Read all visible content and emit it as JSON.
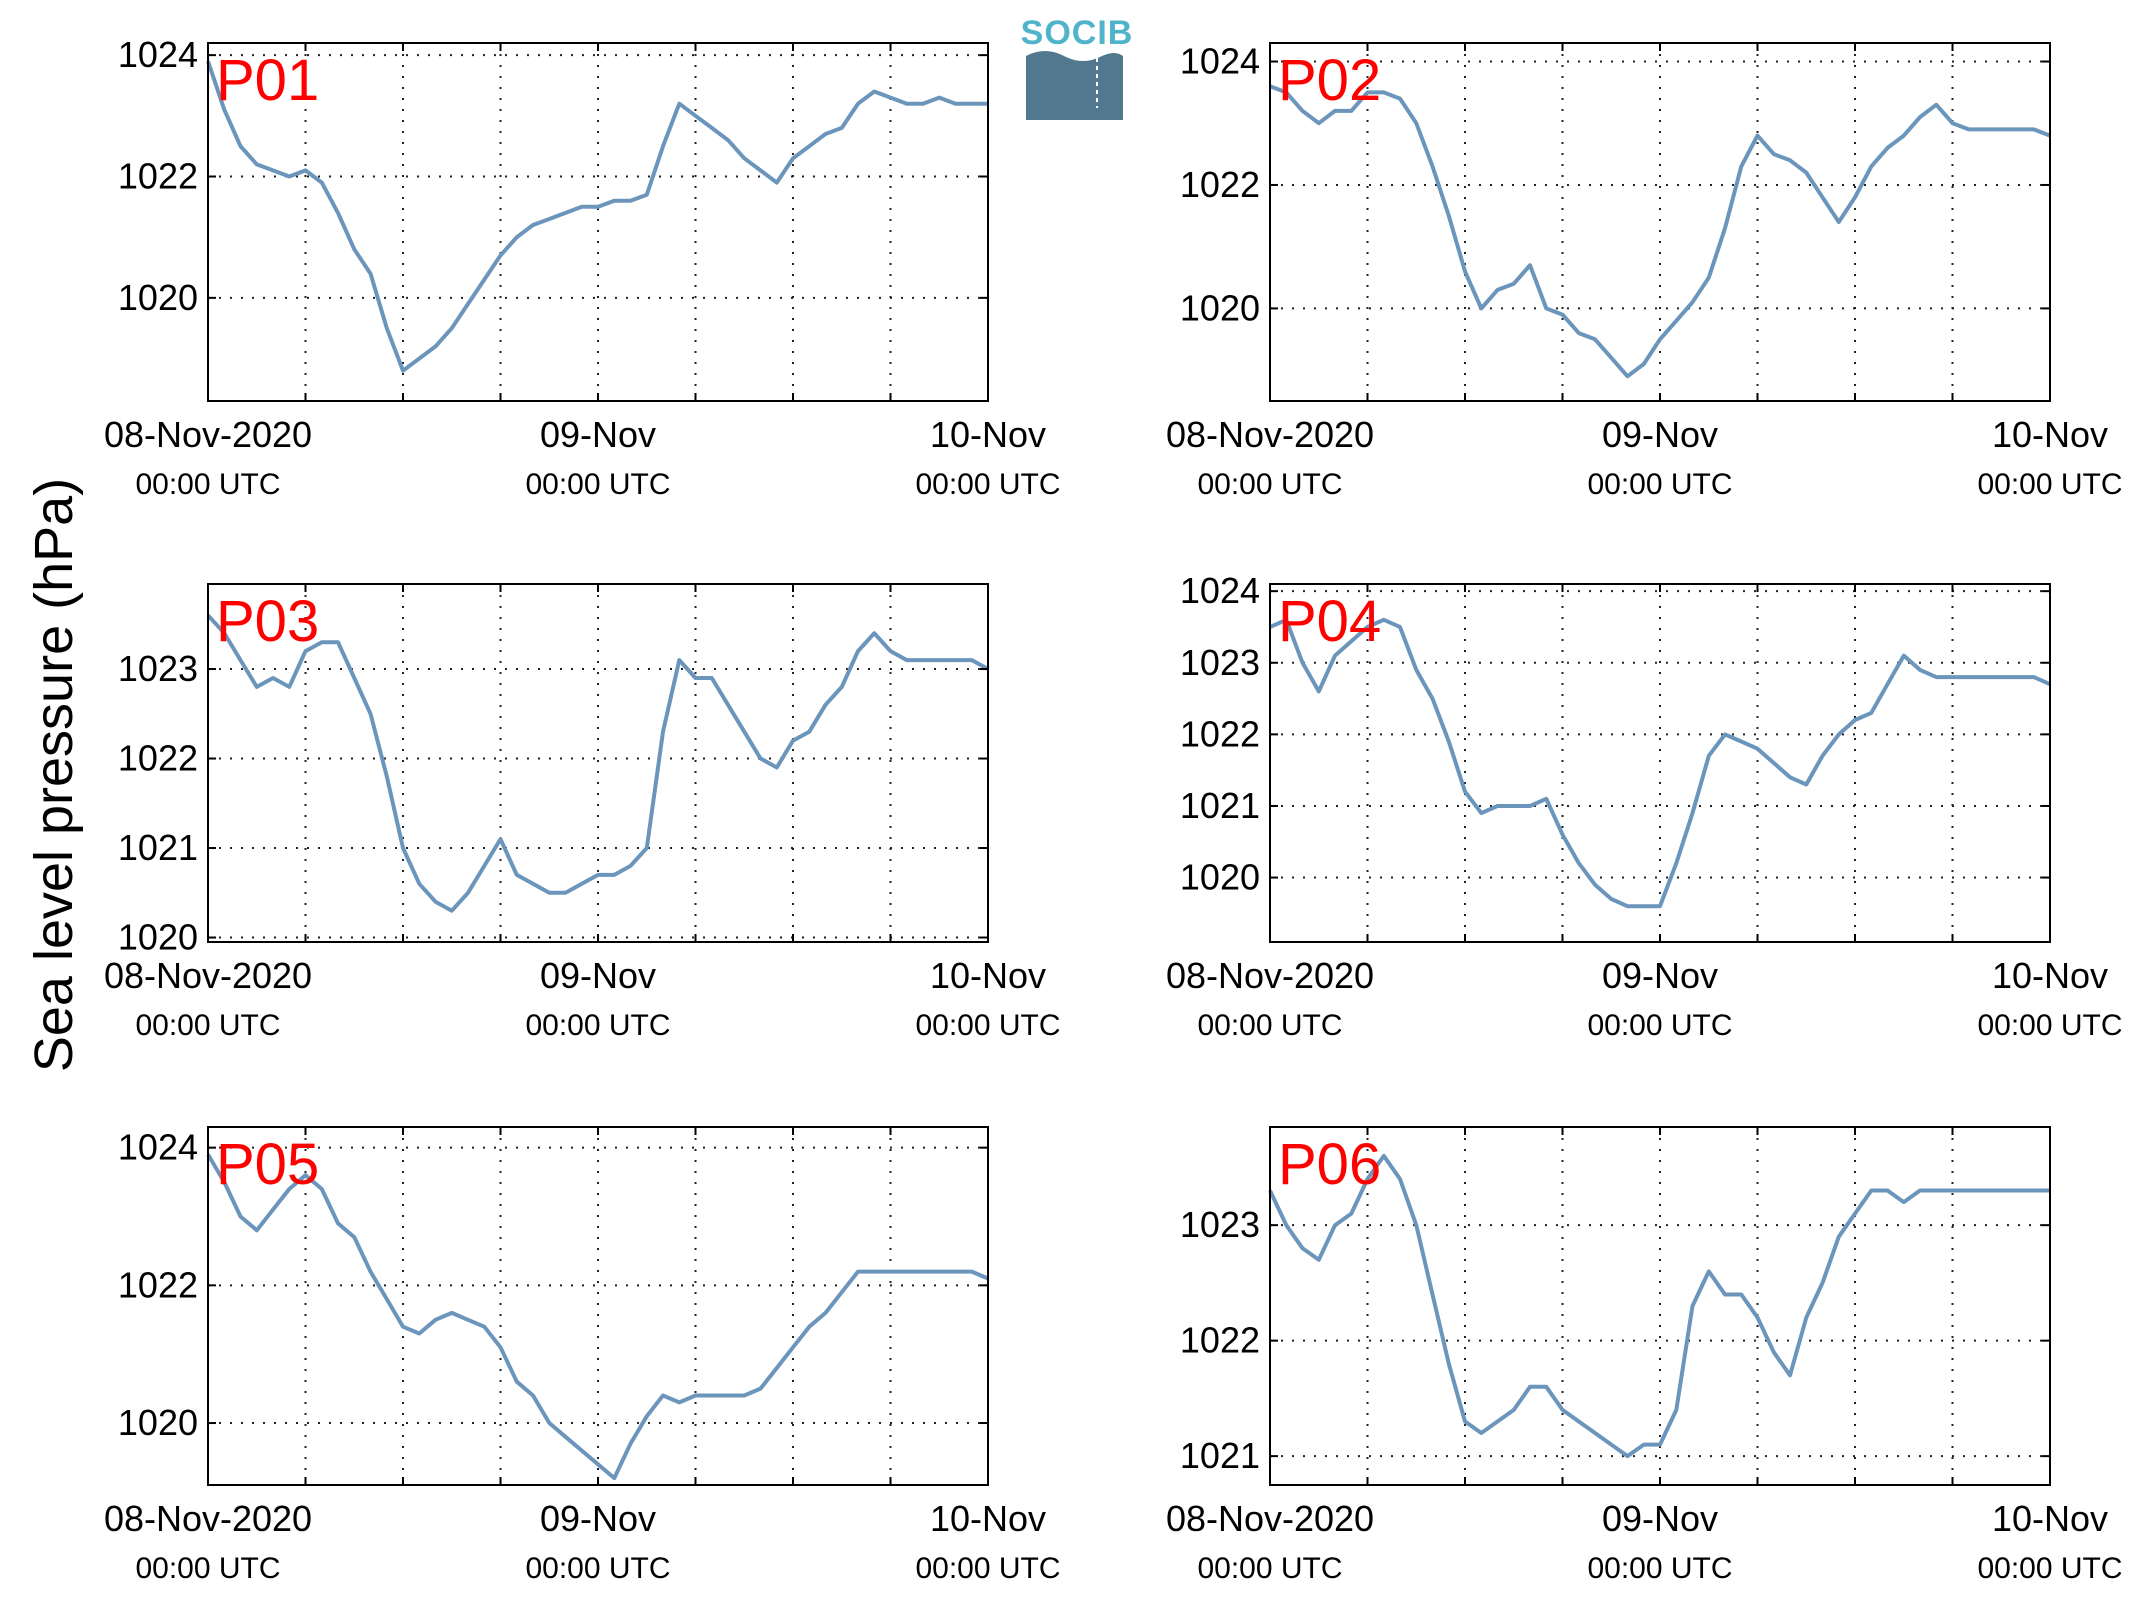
{
  "figure": {
    "ylabel": "Sea level pressure (hPa)",
    "logo": "SOCIB",
    "line_color": "#6b95bb",
    "label_color": "#ff0000"
  },
  "chart_data": [
    {
      "type": "line",
      "panel": "P01",
      "xlim": [
        0,
        48
      ],
      "ylim": [
        1018.3,
        1024.2
      ],
      "yticks": [
        1020,
        1022,
        1024
      ],
      "xtick_labels": [
        {
          "x": 0,
          "date": "08-Nov-2020",
          "time": "00:00 UTC"
        },
        {
          "x": 24,
          "date": "09-Nov",
          "time": "00:00 UTC"
        },
        {
          "x": 48,
          "date": "10-Nov",
          "time": "00:00 UTC"
        }
      ],
      "grid": true,
      "x": [
        0,
        1,
        2,
        3,
        4,
        5,
        6,
        7,
        8,
        9,
        10,
        11,
        12,
        13,
        14,
        15,
        16,
        17,
        18,
        19,
        20,
        21,
        22,
        23,
        24,
        25,
        26,
        27,
        28,
        29,
        30,
        31,
        32,
        33,
        34,
        35,
        36,
        37,
        38,
        39,
        40,
        41,
        42,
        43,
        44,
        45,
        46,
        47,
        48
      ],
      "y": [
        1023.9,
        1023.1,
        1022.5,
        1022.2,
        1022.1,
        1022.0,
        1022.1,
        1021.9,
        1021.4,
        1020.8,
        1020.4,
        1019.5,
        1018.8,
        1019.0,
        1019.2,
        1019.5,
        1019.9,
        1020.3,
        1020.7,
        1021.0,
        1021.2,
        1021.3,
        1021.4,
        1021.5,
        1021.5,
        1021.6,
        1021.6,
        1021.7,
        1022.5,
        1023.2,
        1023.0,
        1022.8,
        1022.6,
        1022.3,
        1022.1,
        1021.9,
        1022.3,
        1022.5,
        1022.7,
        1022.8,
        1023.2,
        1023.4,
        1023.3,
        1023.2,
        1023.2,
        1023.3,
        1023.2,
        1023.2,
        1023.2
      ]
    },
    {
      "type": "line",
      "panel": "P02",
      "xlim": [
        0,
        48
      ],
      "ylim": [
        1018.5,
        1024.3
      ],
      "yticks": [
        1020,
        1022,
        1024
      ],
      "xtick_labels": [
        {
          "x": 0,
          "date": "08-Nov-2020",
          "time": "00:00 UTC"
        },
        {
          "x": 24,
          "date": "09-Nov",
          "time": "00:00 UTC"
        },
        {
          "x": 48,
          "date": "10-Nov",
          "time": "00:00 UTC"
        }
      ],
      "grid": true,
      "x": [
        0,
        1,
        2,
        3,
        4,
        5,
        6,
        7,
        8,
        9,
        10,
        11,
        12,
        13,
        14,
        15,
        16,
        17,
        18,
        19,
        20,
        21,
        22,
        23,
        24,
        25,
        26,
        27,
        28,
        29,
        30,
        31,
        32,
        33,
        34,
        35,
        36,
        37,
        38,
        39,
        40,
        41,
        42,
        43,
        44,
        45,
        46,
        47,
        48
      ],
      "y": [
        1023.6,
        1023.5,
        1023.2,
        1023.0,
        1023.2,
        1023.2,
        1023.5,
        1023.5,
        1023.4,
        1023.0,
        1022.3,
        1021.5,
        1020.6,
        1020.0,
        1020.3,
        1020.4,
        1020.7,
        1020.0,
        1019.9,
        1019.6,
        1019.5,
        1019.2,
        1018.9,
        1019.1,
        1019.5,
        1019.8,
        1020.1,
        1020.5,
        1021.3,
        1022.3,
        1022.8,
        1022.5,
        1022.4,
        1022.2,
        1021.8,
        1021.4,
        1021.8,
        1022.3,
        1022.6,
        1022.8,
        1023.1,
        1023.3,
        1023.0,
        1022.9,
        1022.9,
        1022.9,
        1022.9,
        1022.9,
        1022.8
      ]
    },
    {
      "type": "line",
      "panel": "P03",
      "xlim": [
        0,
        48
      ],
      "ylim": [
        1019.95,
        1023.95
      ],
      "yticks": [
        1020,
        1021,
        1022,
        1023
      ],
      "xtick_labels": [
        {
          "x": 0,
          "date": "08-Nov-2020",
          "time": "00:00 UTC"
        },
        {
          "x": 24,
          "date": "09-Nov",
          "time": "00:00 UTC"
        },
        {
          "x": 48,
          "date": "10-Nov",
          "time": "00:00 UTC"
        }
      ],
      "grid": true,
      "x": [
        0,
        1,
        2,
        3,
        4,
        5,
        6,
        7,
        8,
        9,
        10,
        11,
        12,
        13,
        14,
        15,
        16,
        17,
        18,
        19,
        20,
        21,
        22,
        23,
        24,
        25,
        26,
        27,
        28,
        29,
        30,
        31,
        32,
        33,
        34,
        35,
        36,
        37,
        38,
        39,
        40,
        41,
        42,
        43,
        44,
        45,
        46,
        47,
        48
      ],
      "y": [
        1023.6,
        1023.4,
        1023.1,
        1022.8,
        1022.9,
        1022.8,
        1023.2,
        1023.3,
        1023.3,
        1022.9,
        1022.5,
        1021.8,
        1021.0,
        1020.6,
        1020.4,
        1020.3,
        1020.5,
        1020.8,
        1021.1,
        1020.7,
        1020.6,
        1020.5,
        1020.5,
        1020.6,
        1020.7,
        1020.7,
        1020.8,
        1021.0,
        1022.3,
        1023.1,
        1022.9,
        1022.9,
        1022.6,
        1022.3,
        1022.0,
        1021.9,
        1022.2,
        1022.3,
        1022.6,
        1022.8,
        1023.2,
        1023.4,
        1023.2,
        1023.1,
        1023.1,
        1023.1,
        1023.1,
        1023.1,
        1023.0
      ]
    },
    {
      "type": "line",
      "panel": "P04",
      "xlim": [
        0,
        48
      ],
      "ylim": [
        1019.1,
        1024.1
      ],
      "yticks": [
        1020,
        1021,
        1022,
        1023,
        1024
      ],
      "xtick_labels": [
        {
          "x": 0,
          "date": "08-Nov-2020",
          "time": "00:00 UTC"
        },
        {
          "x": 24,
          "date": "09-Nov",
          "time": "00:00 UTC"
        },
        {
          "x": 48,
          "date": "10-Nov",
          "time": "00:00 UTC"
        }
      ],
      "grid": true,
      "x": [
        0,
        1,
        2,
        3,
        4,
        5,
        6,
        7,
        8,
        9,
        10,
        11,
        12,
        13,
        14,
        15,
        16,
        17,
        18,
        19,
        20,
        21,
        22,
        23,
        24,
        25,
        26,
        27,
        28,
        29,
        30,
        31,
        32,
        33,
        34,
        35,
        36,
        37,
        38,
        39,
        40,
        41,
        42,
        43,
        44,
        45,
        46,
        47,
        48
      ],
      "y": [
        1023.5,
        1023.6,
        1023.0,
        1022.6,
        1023.1,
        1023.3,
        1023.5,
        1023.6,
        1023.5,
        1022.9,
        1022.5,
        1021.9,
        1021.2,
        1020.9,
        1021.0,
        1021.0,
        1021.0,
        1021.1,
        1020.6,
        1020.2,
        1019.9,
        1019.7,
        1019.6,
        1019.6,
        1019.6,
        1020.2,
        1020.9,
        1021.7,
        1022.0,
        1021.9,
        1021.8,
        1021.6,
        1021.4,
        1021.3,
        1021.7,
        1022.0,
        1022.2,
        1022.3,
        1022.7,
        1023.1,
        1022.9,
        1022.8,
        1022.8,
        1022.8,
        1022.8,
        1022.8,
        1022.8,
        1022.8,
        1022.7
      ]
    },
    {
      "type": "line",
      "panel": "P05",
      "xlim": [
        0,
        48
      ],
      "ylim": [
        1019.1,
        1024.3
      ],
      "yticks": [
        1020,
        1022,
        1024
      ],
      "xtick_labels": [
        {
          "x": 0,
          "date": "08-Nov-2020",
          "time": "00:00 UTC"
        },
        {
          "x": 24,
          "date": "09-Nov",
          "time": "00:00 UTC"
        },
        {
          "x": 48,
          "date": "10-Nov",
          "time": "00:00 UTC"
        }
      ],
      "grid": true,
      "x": [
        0,
        1,
        2,
        3,
        4,
        5,
        6,
        7,
        8,
        9,
        10,
        11,
        12,
        13,
        14,
        15,
        16,
        17,
        18,
        19,
        20,
        21,
        22,
        23,
        24,
        25,
        26,
        27,
        28,
        29,
        30,
        31,
        32,
        33,
        34,
        35,
        36,
        37,
        38,
        39,
        40,
        41,
        42,
        43,
        44,
        45,
        46,
        47,
        48
      ],
      "y": [
        1023.9,
        1023.5,
        1023.0,
        1022.8,
        1023.1,
        1023.4,
        1023.6,
        1023.4,
        1022.9,
        1022.7,
        1022.2,
        1021.8,
        1021.4,
        1021.3,
        1021.5,
        1021.6,
        1021.5,
        1021.4,
        1021.1,
        1020.6,
        1020.4,
        1020.0,
        1019.8,
        1019.6,
        1019.4,
        1019.2,
        1019.7,
        1020.1,
        1020.4,
        1020.3,
        1020.4,
        1020.4,
        1020.4,
        1020.4,
        1020.5,
        1020.8,
        1021.1,
        1021.4,
        1021.6,
        1021.9,
        1022.2,
        1022.2,
        1022.2,
        1022.2,
        1022.2,
        1022.2,
        1022.2,
        1022.2,
        1022.1
      ]
    },
    {
      "type": "line",
      "panel": "P06",
      "xlim": [
        0,
        48
      ],
      "ylim": [
        1020.75,
        1023.85
      ],
      "yticks": [
        1021,
        1022,
        1023
      ],
      "xtick_labels": [
        {
          "x": 0,
          "date": "08-Nov-2020",
          "time": "00:00 UTC"
        },
        {
          "x": 24,
          "date": "09-Nov",
          "time": "00:00 UTC"
        },
        {
          "x": 48,
          "date": "10-Nov",
          "time": "00:00 UTC"
        }
      ],
      "grid": true,
      "x": [
        0,
        1,
        2,
        3,
        4,
        5,
        6,
        7,
        8,
        9,
        10,
        11,
        12,
        13,
        14,
        15,
        16,
        17,
        18,
        19,
        20,
        21,
        22,
        23,
        24,
        25,
        26,
        27,
        28,
        29,
        30,
        31,
        32,
        33,
        34,
        35,
        36,
        37,
        38,
        39,
        40,
        41,
        42,
        43,
        44,
        45,
        46,
        47,
        48
      ],
      "y": [
        1023.3,
        1023.0,
        1022.8,
        1022.7,
        1023.0,
        1023.1,
        1023.4,
        1023.6,
        1023.4,
        1023.0,
        1022.4,
        1021.8,
        1021.3,
        1021.2,
        1021.3,
        1021.4,
        1021.6,
        1021.6,
        1021.4,
        1021.3,
        1021.2,
        1021.1,
        1021.0,
        1021.1,
        1021.1,
        1021.4,
        1022.3,
        1022.6,
        1022.4,
        1022.4,
        1022.2,
        1021.9,
        1021.7,
        1022.2,
        1022.5,
        1022.9,
        1023.1,
        1023.3,
        1023.3,
        1023.2,
        1023.3,
        1023.3,
        1023.3,
        1023.3,
        1023.3,
        1023.3,
        1023.3,
        1023.3,
        1023.3
      ]
    }
  ]
}
